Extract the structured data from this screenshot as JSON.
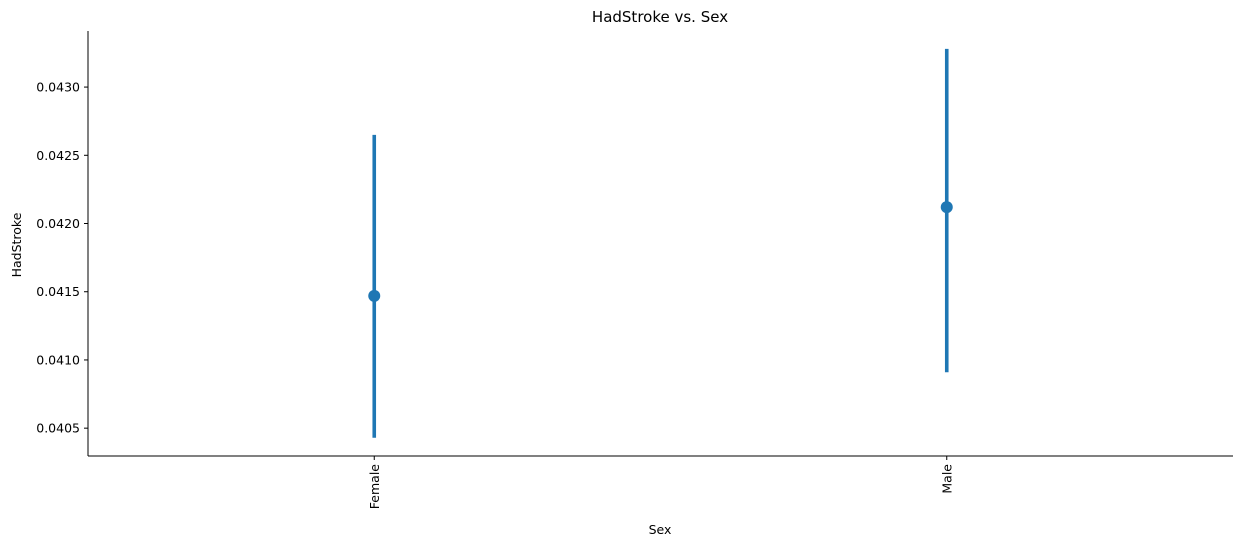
{
  "chart_data": {
    "type": "scatter",
    "title": "HadStroke vs. Sex",
    "xlabel": "Sex",
    "ylabel": "HadStroke",
    "categories": [
      "Female",
      "Male"
    ],
    "series": [
      {
        "values": [
          0.04147,
          0.04212
        ],
        "ci_low": [
          0.04043,
          0.04091
        ],
        "ci_high": [
          0.04265,
          0.04328
        ],
        "color": "#1f77b4"
      }
    ],
    "yticks": [
      0.0405,
      0.041,
      0.0415,
      0.042,
      0.0425,
      0.043
    ],
    "ytick_labels": [
      "0.0405",
      "0.0410",
      "0.0415",
      "0.0420",
      "0.0425",
      "0.0430"
    ],
    "ylim": [
      0.040296,
      0.043411
    ],
    "grid": false,
    "x_tick_rotation": "vertical"
  }
}
